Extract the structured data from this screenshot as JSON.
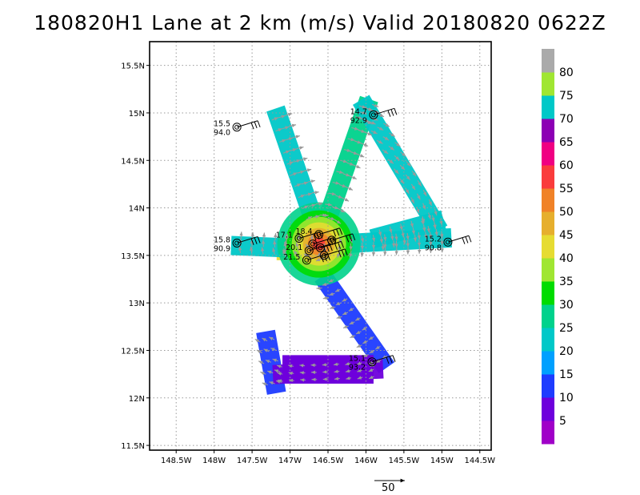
{
  "chart_data": {
    "type": "heatmap",
    "title": "180820H1 Lane at 2 km (m/s) Valid 20180820 0622Z",
    "xlim": [
      -148.85,
      -144.35
    ],
    "ylim": [
      11.45,
      15.75
    ],
    "x_ticks": [
      {
        "value": -148.5,
        "label": "148.5W"
      },
      {
        "value": -148.0,
        "label": "148W"
      },
      {
        "value": -147.5,
        "label": "147.5W"
      },
      {
        "value": -147.0,
        "label": "147W"
      },
      {
        "value": -146.5,
        "label": "146.5W"
      },
      {
        "value": -146.0,
        "label": "146W"
      },
      {
        "value": -145.5,
        "label": "145.5W"
      },
      {
        "value": -145.0,
        "label": "145W"
      },
      {
        "value": -144.5,
        "label": "144.5W"
      }
    ],
    "y_ticks": [
      {
        "value": 11.5,
        "label": "11.5N"
      },
      {
        "value": 12.0,
        "label": "12N"
      },
      {
        "value": 12.5,
        "label": "12.5N"
      },
      {
        "value": 13.0,
        "label": "13N"
      },
      {
        "value": 13.5,
        "label": "13.5N"
      },
      {
        "value": 14.0,
        "label": "14N"
      },
      {
        "value": 14.5,
        "label": "14.5N"
      },
      {
        "value": 15.0,
        "label": "15N"
      },
      {
        "value": 15.5,
        "label": "15.5N"
      }
    ],
    "grid": true,
    "colorbar": {
      "labels": [
        "5",
        "10",
        "15",
        "20",
        "25",
        "30",
        "35",
        "40",
        "45",
        "50",
        "55",
        "60",
        "65",
        "70",
        "75",
        "80"
      ],
      "colors": [
        "#a000c8",
        "#6e00dc",
        "#1e3cff",
        "#00a0ff",
        "#00c8c8",
        "#00d28c",
        "#00dc00",
        "#a0e632",
        "#e6dc32",
        "#e6af2d",
        "#f08228",
        "#fa3c3c",
        "#f00082",
        "#8c00b4",
        "#00c8c8",
        "#a0e632",
        "#aaaaaa"
      ]
    },
    "flight_track": [
      {
        "from": [
          -147.05,
          13.55
        ],
        "to": [
          -146.55,
          13.55
        ],
        "wind": 40
      },
      {
        "from": [
          -147.65,
          13.6
        ],
        "to": [
          -147.05,
          13.58
        ],
        "wind": 22
      },
      {
        "from": [
          -146.35,
          13.62
        ],
        "to": [
          -145.0,
          13.68
        ],
        "wind": 22
      },
      {
        "from": [
          -147.15,
          14.95
        ],
        "to": [
          -146.7,
          13.9
        ],
        "wind": 22
      },
      {
        "from": [
          -146.0,
          15.05
        ],
        "to": [
          -146.5,
          13.9
        ],
        "wind": 25
      },
      {
        "from": [
          -146.0,
          15.05
        ],
        "to": [
          -145.1,
          13.85
        ],
        "wind": 20
      },
      {
        "from": [
          -145.1,
          13.85
        ],
        "to": [
          -145.8,
          13.7
        ],
        "wind": 20
      },
      {
        "from": [
          -146.5,
          13.2
        ],
        "to": [
          -145.8,
          12.4
        ],
        "wind": 10
      },
      {
        "from": [
          -147.3,
          12.6
        ],
        "to": [
          -147.2,
          12.15
        ],
        "wind": 12
      },
      {
        "from": [
          -147.1,
          12.25
        ],
        "to": [
          -145.9,
          12.3
        ],
        "wind": 6
      }
    ],
    "dropsondes": [
      {
        "lon": -147.7,
        "lat": 14.85,
        "line1": "15.5",
        "line2": "94.0"
      },
      {
        "lon": -145.9,
        "lat": 14.98,
        "line1": "14.7",
        "line2": "92.9"
      },
      {
        "lon": -147.7,
        "lat": 13.63,
        "line1": "15.8",
        "line2": "90.9"
      },
      {
        "lon": -144.92,
        "lat": 13.64,
        "line1": "15.2",
        "line2": "90.8"
      },
      {
        "lon": -145.92,
        "lat": 12.38,
        "line1": "15.1",
        "line2": "93.2"
      },
      {
        "lon": -146.62,
        "lat": 13.72,
        "line1": "18.4",
        "line2": ""
      },
      {
        "lon": -146.88,
        "lat": 13.68,
        "line1": "17.1",
        "line2": ""
      },
      {
        "lon": -146.45,
        "lat": 13.66,
        "line1": "",
        "line2": ""
      },
      {
        "lon": -146.75,
        "lat": 13.55,
        "line1": "20.1",
        "line2": ""
      },
      {
        "lon": -146.6,
        "lat": 13.58,
        "line1": "",
        "line2": ""
      },
      {
        "lon": -146.78,
        "lat": 13.45,
        "line1": "21.5",
        "line2": ""
      },
      {
        "lon": -146.55,
        "lat": 13.5,
        "line1": "",
        "line2": ""
      },
      {
        "lon": -146.7,
        "lat": 13.62,
        "line1": "",
        "line2": ""
      }
    ],
    "reference_vector": {
      "label": "50",
      "units": "m/s"
    }
  }
}
